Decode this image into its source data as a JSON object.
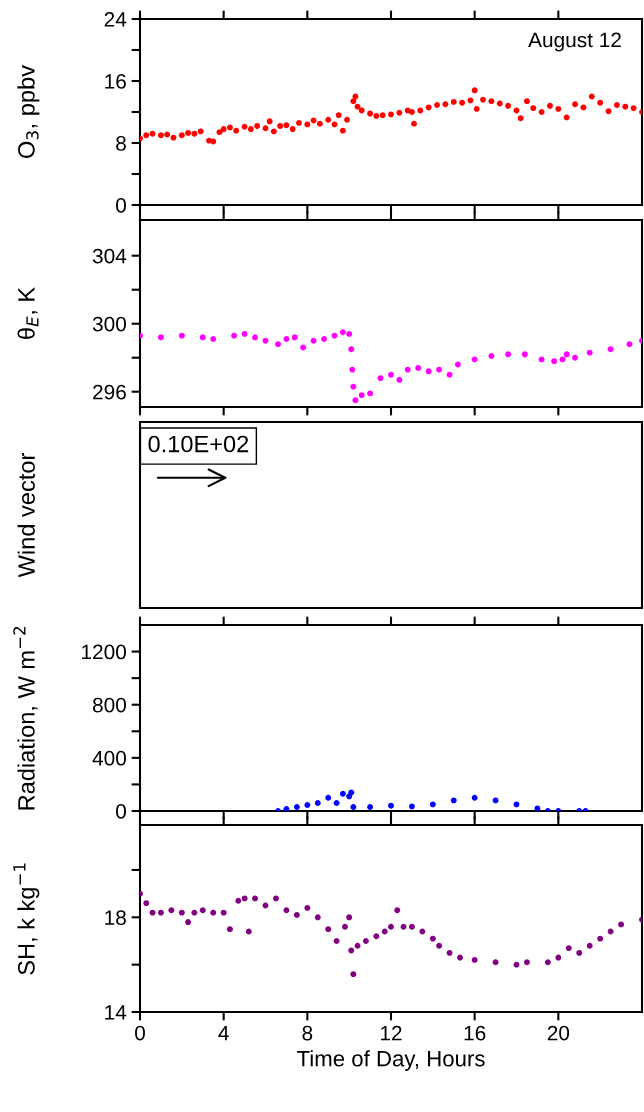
{
  "chart_data": [
    {
      "type": "scatter",
      "ylabel": "O$_{3}$, ppbv",
      "annotations": [
        "August 12"
      ],
      "xlim": [
        0,
        24
      ],
      "xticks": [
        {
          "value": 0,
          "label": null
        },
        {
          "value": 4,
          "label": null
        },
        {
          "value": 8,
          "label": null
        },
        {
          "value": 12,
          "label": null
        },
        {
          "value": 16,
          "label": null
        },
        {
          "value": 20,
          "label": null
        }
      ],
      "ylim": [
        0,
        24
      ],
      "yticks": [
        0,
        {
          "value": 4,
          "label": null
        },
        8,
        {
          "value": 12,
          "label": null
        },
        16,
        {
          "value": 20,
          "label": null
        },
        24
      ],
      "tick_labels": "y",
      "marker": "circle",
      "grid": false,
      "legend": false,
      "series": [
        {
          "color": "#ff0000",
          "x": [
            0,
            0.3,
            0.6,
            1,
            1.3,
            1.6,
            2,
            2.3,
            2.6,
            2.9,
            3.3,
            3.5,
            3.8,
            4,
            4.3,
            4.6,
            5,
            5.3,
            5.6,
            6,
            6.2,
            6.4,
            6.7,
            7,
            7.3,
            7.6,
            8,
            8.3,
            8.6,
            9,
            9.3,
            9.5,
            9.7,
            9.9,
            10.2,
            10.3,
            10.4,
            10.6,
            11,
            11.3,
            11.6,
            12,
            12.4,
            12.8,
            13,
            13.1,
            13.4,
            13.8,
            14.2,
            14.6,
            15,
            15.4,
            15.8,
            16,
            16.1,
            16.4,
            16.8,
            17.2,
            17.6,
            18,
            18.2,
            18.5,
            18.8,
            19.2,
            19.6,
            20,
            20.4,
            20.8,
            21.2,
            21.6,
            22,
            22.4,
            22.8,
            23.2,
            23.6,
            24
          ],
          "values": [
            8.6,
            9.0,
            9.2,
            9.0,
            9.1,
            8.7,
            9.0,
            9.3,
            9.2,
            9.5,
            8.3,
            8.2,
            9.4,
            9.8,
            10.0,
            9.6,
            10.1,
            9.8,
            10.2,
            9.9,
            10.8,
            9.5,
            10.2,
            10.3,
            9.8,
            10.6,
            10.4,
            10.9,
            10.5,
            11.0,
            10.4,
            11.6,
            9.6,
            11.0,
            13.4,
            14.0,
            12.7,
            12.2,
            11.8,
            11.5,
            11.6,
            11.7,
            11.9,
            12.2,
            12.0,
            10.5,
            12.2,
            12.6,
            12.9,
            13.0,
            13.3,
            13.2,
            13.5,
            14.8,
            12.4,
            13.6,
            13.4,
            13.1,
            12.8,
            12.2,
            11.2,
            13.4,
            12.5,
            12.0,
            12.8,
            12.4,
            11.3,
            13.0,
            12.6,
            14.0,
            13.2,
            12.1,
            12.9,
            12.7,
            12.5,
            12.0
          ]
        }
      ]
    },
    {
      "type": "scatter",
      "ylabel": "θ$_{E}$, K",
      "xlim": [
        0,
        24
      ],
      "xticks": [
        {
          "value": 0,
          "label": null
        },
        {
          "value": 4,
          "label": null
        },
        {
          "value": 8,
          "label": null
        },
        {
          "value": 12,
          "label": null
        },
        {
          "value": 16,
          "label": null
        },
        {
          "value": 20,
          "label": null
        }
      ],
      "ylim": [
        295.1,
        306.1
      ],
      "yticks": [
        296,
        {
          "value": 298,
          "label": null
        },
        300,
        {
          "value": 302,
          "label": null
        },
        304
      ],
      "tick_labels": "y",
      "marker": "circle",
      "grid": false,
      "legend": false,
      "series": [
        {
          "color": "#ff00ff",
          "x": [
            0,
            1,
            2,
            3,
            3.5,
            4.5,
            5,
            5.5,
            6,
            6.6,
            7,
            7.4,
            7.8,
            8.3,
            8.8,
            9.3,
            9.7,
            10,
            10.1,
            10.15,
            10.2,
            10.3,
            10.6,
            11,
            11.5,
            12,
            12.4,
            12.8,
            13.3,
            13.8,
            14.3,
            14.8,
            15.2,
            16,
            16.8,
            17.6,
            18.4,
            19.2,
            19.8,
            20.2,
            20.4,
            20.8,
            21.5,
            22.5,
            23.4,
            24
          ],
          "values": [
            299.3,
            299.2,
            299.3,
            299.2,
            299.1,
            299.3,
            299.4,
            299.2,
            299.0,
            298.8,
            299.1,
            299.2,
            298.6,
            299.0,
            299.1,
            299.3,
            299.5,
            299.4,
            298.5,
            297.3,
            296.3,
            295.5,
            295.8,
            295.9,
            296.8,
            297.0,
            296.7,
            297.3,
            297.4,
            297.2,
            297.3,
            297.0,
            297.6,
            297.9,
            298.1,
            298.2,
            298.2,
            297.9,
            297.8,
            297.9,
            298.2,
            298.0,
            298.3,
            298.5,
            298.8,
            299.0
          ]
        }
      ]
    },
    {
      "type": "other",
      "ylabel": "Wind vector",
      "annotations": [
        "0.10E+02"
      ]
    },
    {
      "type": "scatter",
      "ylabel": "Radiation, W m$^{−2}$",
      "xlim": [
        0,
        24
      ],
      "xticks": [
        {
          "value": 0,
          "label": null
        },
        {
          "value": 4,
          "label": null
        },
        {
          "value": 8,
          "label": null
        },
        {
          "value": 12,
          "label": null
        },
        {
          "value": 16,
          "label": null
        },
        {
          "value": 20,
          "label": null
        }
      ],
      "ylim": [
        0,
        1400
      ],
      "yticks": [
        0,
        {
          "value": 200,
          "label": null
        },
        400,
        {
          "value": 600,
          "label": null
        },
        800,
        {
          "value": 1000,
          "label": null
        },
        1200
      ],
      "tick_labels": "y",
      "marker": "circle",
      "grid": false,
      "legend": false,
      "series": [
        {
          "color": "#0000ff",
          "x": [
            6.6,
            7,
            7.5,
            8,
            8.5,
            9,
            9.4,
            9.7,
            10,
            10.1,
            10.2,
            11,
            12,
            13,
            14,
            15,
            16,
            17,
            18,
            19,
            19.5,
            20,
            21,
            21.3
          ],
          "values": [
            0,
            15,
            30,
            45,
            60,
            100,
            60,
            130,
            110,
            140,
            30,
            30,
            40,
            35,
            50,
            80,
            100,
            80,
            50,
            20,
            0,
            0,
            0,
            0
          ]
        }
      ]
    },
    {
      "type": "scatter",
      "ylabel": "SH, k kg$^{−1}$",
      "xlabel": "Time of Day, Hours",
      "xlim": [
        0,
        24
      ],
      "xticks": [
        0,
        4,
        8,
        12,
        16,
        20
      ],
      "ylim": [
        14,
        21.9
      ],
      "yticks": [
        14,
        {
          "value": 16,
          "label": null
        },
        18,
        {
          "value": 20,
          "label": null
        }
      ],
      "marker": "circle",
      "grid": false,
      "legend": false,
      "series": [
        {
          "color": "#800080",
          "x": [
            0,
            0.3,
            0.6,
            1,
            1.5,
            2,
            2.3,
            2.6,
            3,
            3.5,
            4,
            4.3,
            4.7,
            5,
            5.2,
            5.5,
            6,
            6.5,
            7,
            7.5,
            8,
            8.5,
            9,
            9.4,
            9.8,
            10,
            10.1,
            10.2,
            10.4,
            10.8,
            11.3,
            11.7,
            12,
            12.3,
            12.6,
            13,
            13.5,
            14,
            14.3,
            14.8,
            15.3,
            16,
            17,
            18,
            18.5,
            19.5,
            20,
            20.5,
            21,
            21.5,
            22,
            22.5,
            23,
            24
          ],
          "values": [
            19.0,
            18.6,
            18.2,
            18.2,
            18.3,
            18.2,
            17.8,
            18.2,
            18.3,
            18.2,
            18.2,
            17.5,
            18.7,
            18.8,
            17.4,
            18.8,
            18.5,
            18.8,
            18.3,
            18.1,
            18.4,
            18.0,
            17.5,
            17.0,
            17.6,
            18.0,
            16.6,
            15.6,
            16.8,
            17.0,
            17.2,
            17.4,
            17.6,
            18.3,
            17.6,
            17.6,
            17.4,
            17.1,
            16.8,
            16.5,
            16.3,
            16.2,
            16.1,
            16.0,
            16.1,
            16.1,
            16.3,
            16.7,
            16.5,
            16.8,
            17.1,
            17.4,
            17.7,
            17.9
          ]
        }
      ]
    }
  ]
}
